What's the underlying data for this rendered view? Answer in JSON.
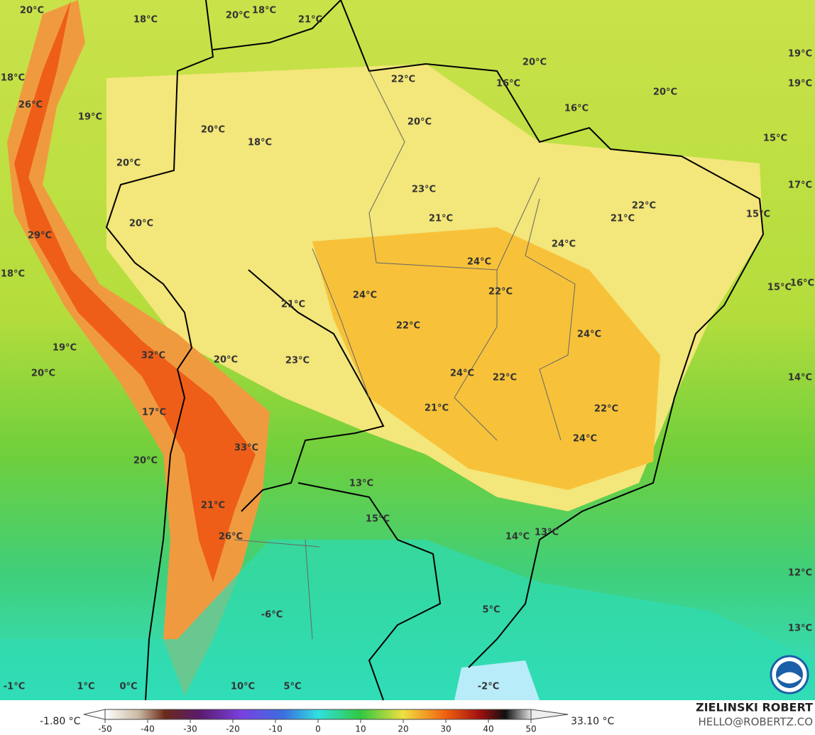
{
  "map": {
    "temperature_labels": [
      "20°C",
      "18°C",
      "20°C",
      "18°C",
      "21°C",
      "20°C",
      "19°C",
      "18°C",
      "22°C",
      "16°C",
      "20°C",
      "19°C",
      "26°C",
      "19°C",
      "16°C",
      "20°C",
      "20°C",
      "18°C",
      "15°C",
      "20°C",
      "23°C",
      "17°C",
      "22°C",
      "21°C",
      "21°C",
      "15°C",
      "20°C",
      "29°C",
      "24°C",
      "24°C",
      "18°C",
      "15°C",
      "16°C",
      "22°C",
      "24°C",
      "21°C",
      "22°C",
      "24°C",
      "19°C",
      "32°C",
      "20°C",
      "23°C",
      "20°C",
      "24°C",
      "22°C",
      "14°C",
      "21°C",
      "22°C",
      "17°C",
      "24°C",
      "33°C",
      "20°C",
      "13°C",
      "21°C",
      "15°C",
      "14°C",
      "13°C",
      "26°C",
      "12°C",
      "5°C",
      "-6°C",
      "13°C",
      "-1°C",
      "1°C",
      "0°C",
      "10°C",
      "5°C",
      "-2°C"
    ]
  },
  "colorbar": {
    "min_label": "-1.80 °C",
    "max_label": "33.10 °C",
    "ticks": [
      -50,
      -40,
      -30,
      -20,
      -10,
      0,
      10,
      20,
      30,
      40,
      50
    ]
  },
  "credit": {
    "name": "ZIELINSKI ROBERT",
    "email": "HELLO@ROBERTZ.CO"
  }
}
